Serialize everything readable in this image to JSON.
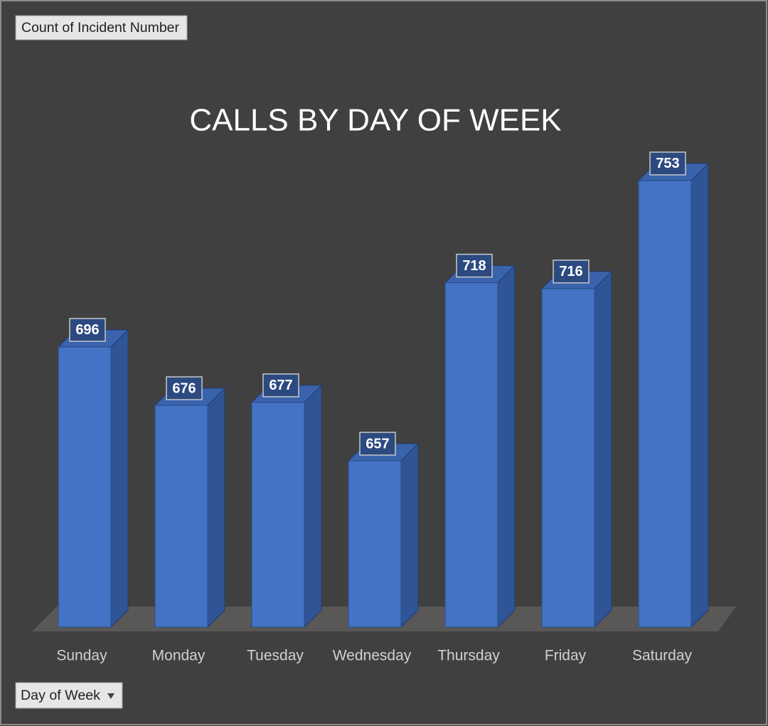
{
  "chart_data": {
    "type": "bar3d",
    "title": "CALLS BY DAY OF WEEK",
    "value_field": "Count of Incident Number",
    "category_field": "Day of Week",
    "categories": [
      "Sunday",
      "Monday",
      "Tuesday",
      "Wednesday",
      "Thursday",
      "Friday",
      "Saturday"
    ],
    "values": [
      696,
      676,
      677,
      657,
      718,
      716,
      753
    ],
    "color": "#4472c4",
    "ylim": [
      600,
      800
    ]
  }
}
